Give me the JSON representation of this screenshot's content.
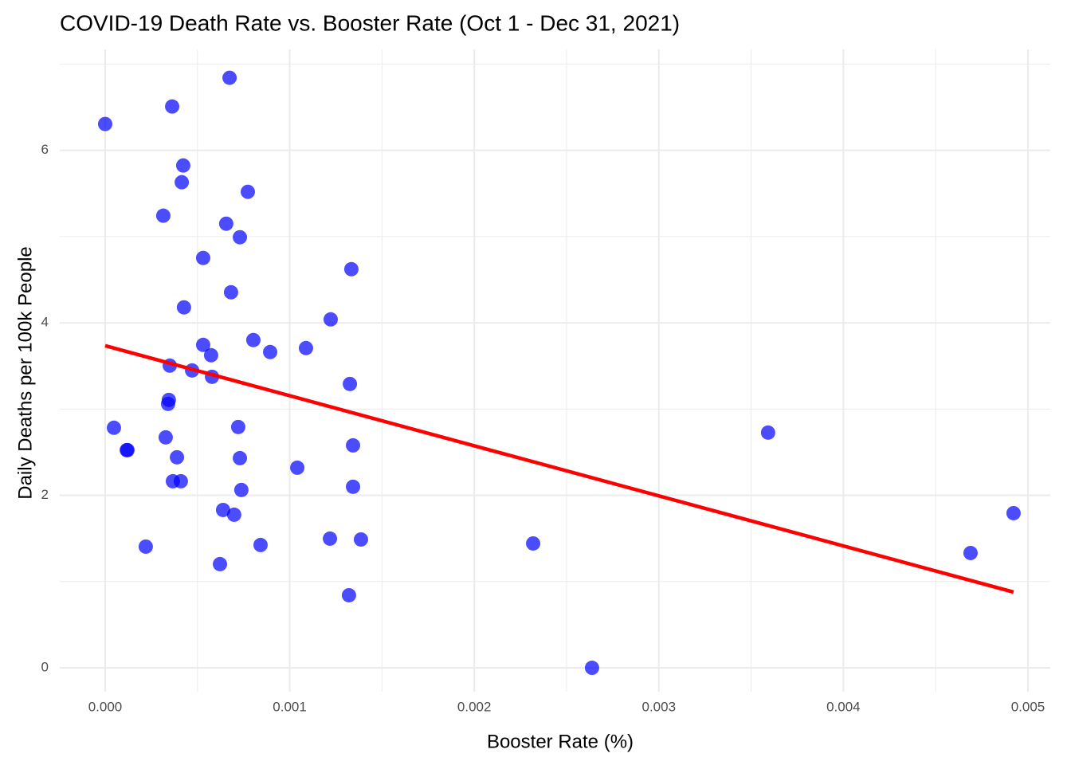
{
  "chart_data": {
    "type": "scatter",
    "title": "COVID-19 Death Rate vs. Booster Rate (Oct 1 - Dec 31, 2021)",
    "x_label": "Booster Rate (%)",
    "y_label": "Daily Deaths per 100k People",
    "xlim": [
      -0.000246,
      0.005121
    ],
    "ylim": [
      -0.277,
      7.17
    ],
    "xticks": [
      {
        "value": 0,
        "label": "0.000"
      },
      0.001,
      0.002,
      0.003,
      0.004,
      0.005
    ],
    "yticks": [
      0,
      2,
      4,
      6
    ],
    "grid": true,
    "minor_grid": true,
    "series": [
      {
        "color": "#0000ff",
        "x": [
          0,
          0.000363,
          0.000674,
          0.000423,
          0.000415,
          0.000773,
          0.000315,
          0.000656,
          0.00073,
          0.000531,
          0.001334,
          0.000682,
          0.000427,
          0.001222,
          0.000803,
          0.000531,
          0.001088,
          0.000894,
          0.000574,
          0.00035,
          0.000471,
          0.000579,
          0.001326,
          0.000345,
          0.000341,
          4.75e-05,
          0.000721,
          0.003592,
          0.000328,
          0.001343,
          0.000121,
          0.000117,
          0.000389,
          0.00073,
          0.001041,
          0.000367,
          0.00041,
          0.001343,
          0.000738,
          0.000639,
          0.000699,
          0.004922,
          0.001218,
          0.001386,
          0.002319,
          0.000842,
          0.00022,
          0.004689,
          0.000622,
          0.001321,
          0.002638
        ],
        "values": [
          6.305,
          6.508,
          6.841,
          5.824,
          5.63,
          5.519,
          5.242,
          5.149,
          4.992,
          4.752,
          4.622,
          4.354,
          4.179,
          4.04,
          3.8,
          3.744,
          3.707,
          3.661,
          3.624,
          3.504,
          3.448,
          3.374,
          3.291,
          3.106,
          3.06,
          2.783,
          2.792,
          2.727,
          2.672,
          2.579,
          2.524,
          2.524,
          2.441,
          2.431,
          2.32,
          2.163,
          2.163,
          2.099,
          2.062,
          1.83,
          1.775,
          1.793,
          1.498,
          1.488,
          1.442,
          1.424,
          1.405,
          1.331,
          1.202,
          0.841,
          0
        ]
      }
    ],
    "trend_line": {
      "color": "#ff0000",
      "x": [
        0,
        0.004922
      ],
      "values": [
        3.735,
        0.878
      ]
    }
  }
}
